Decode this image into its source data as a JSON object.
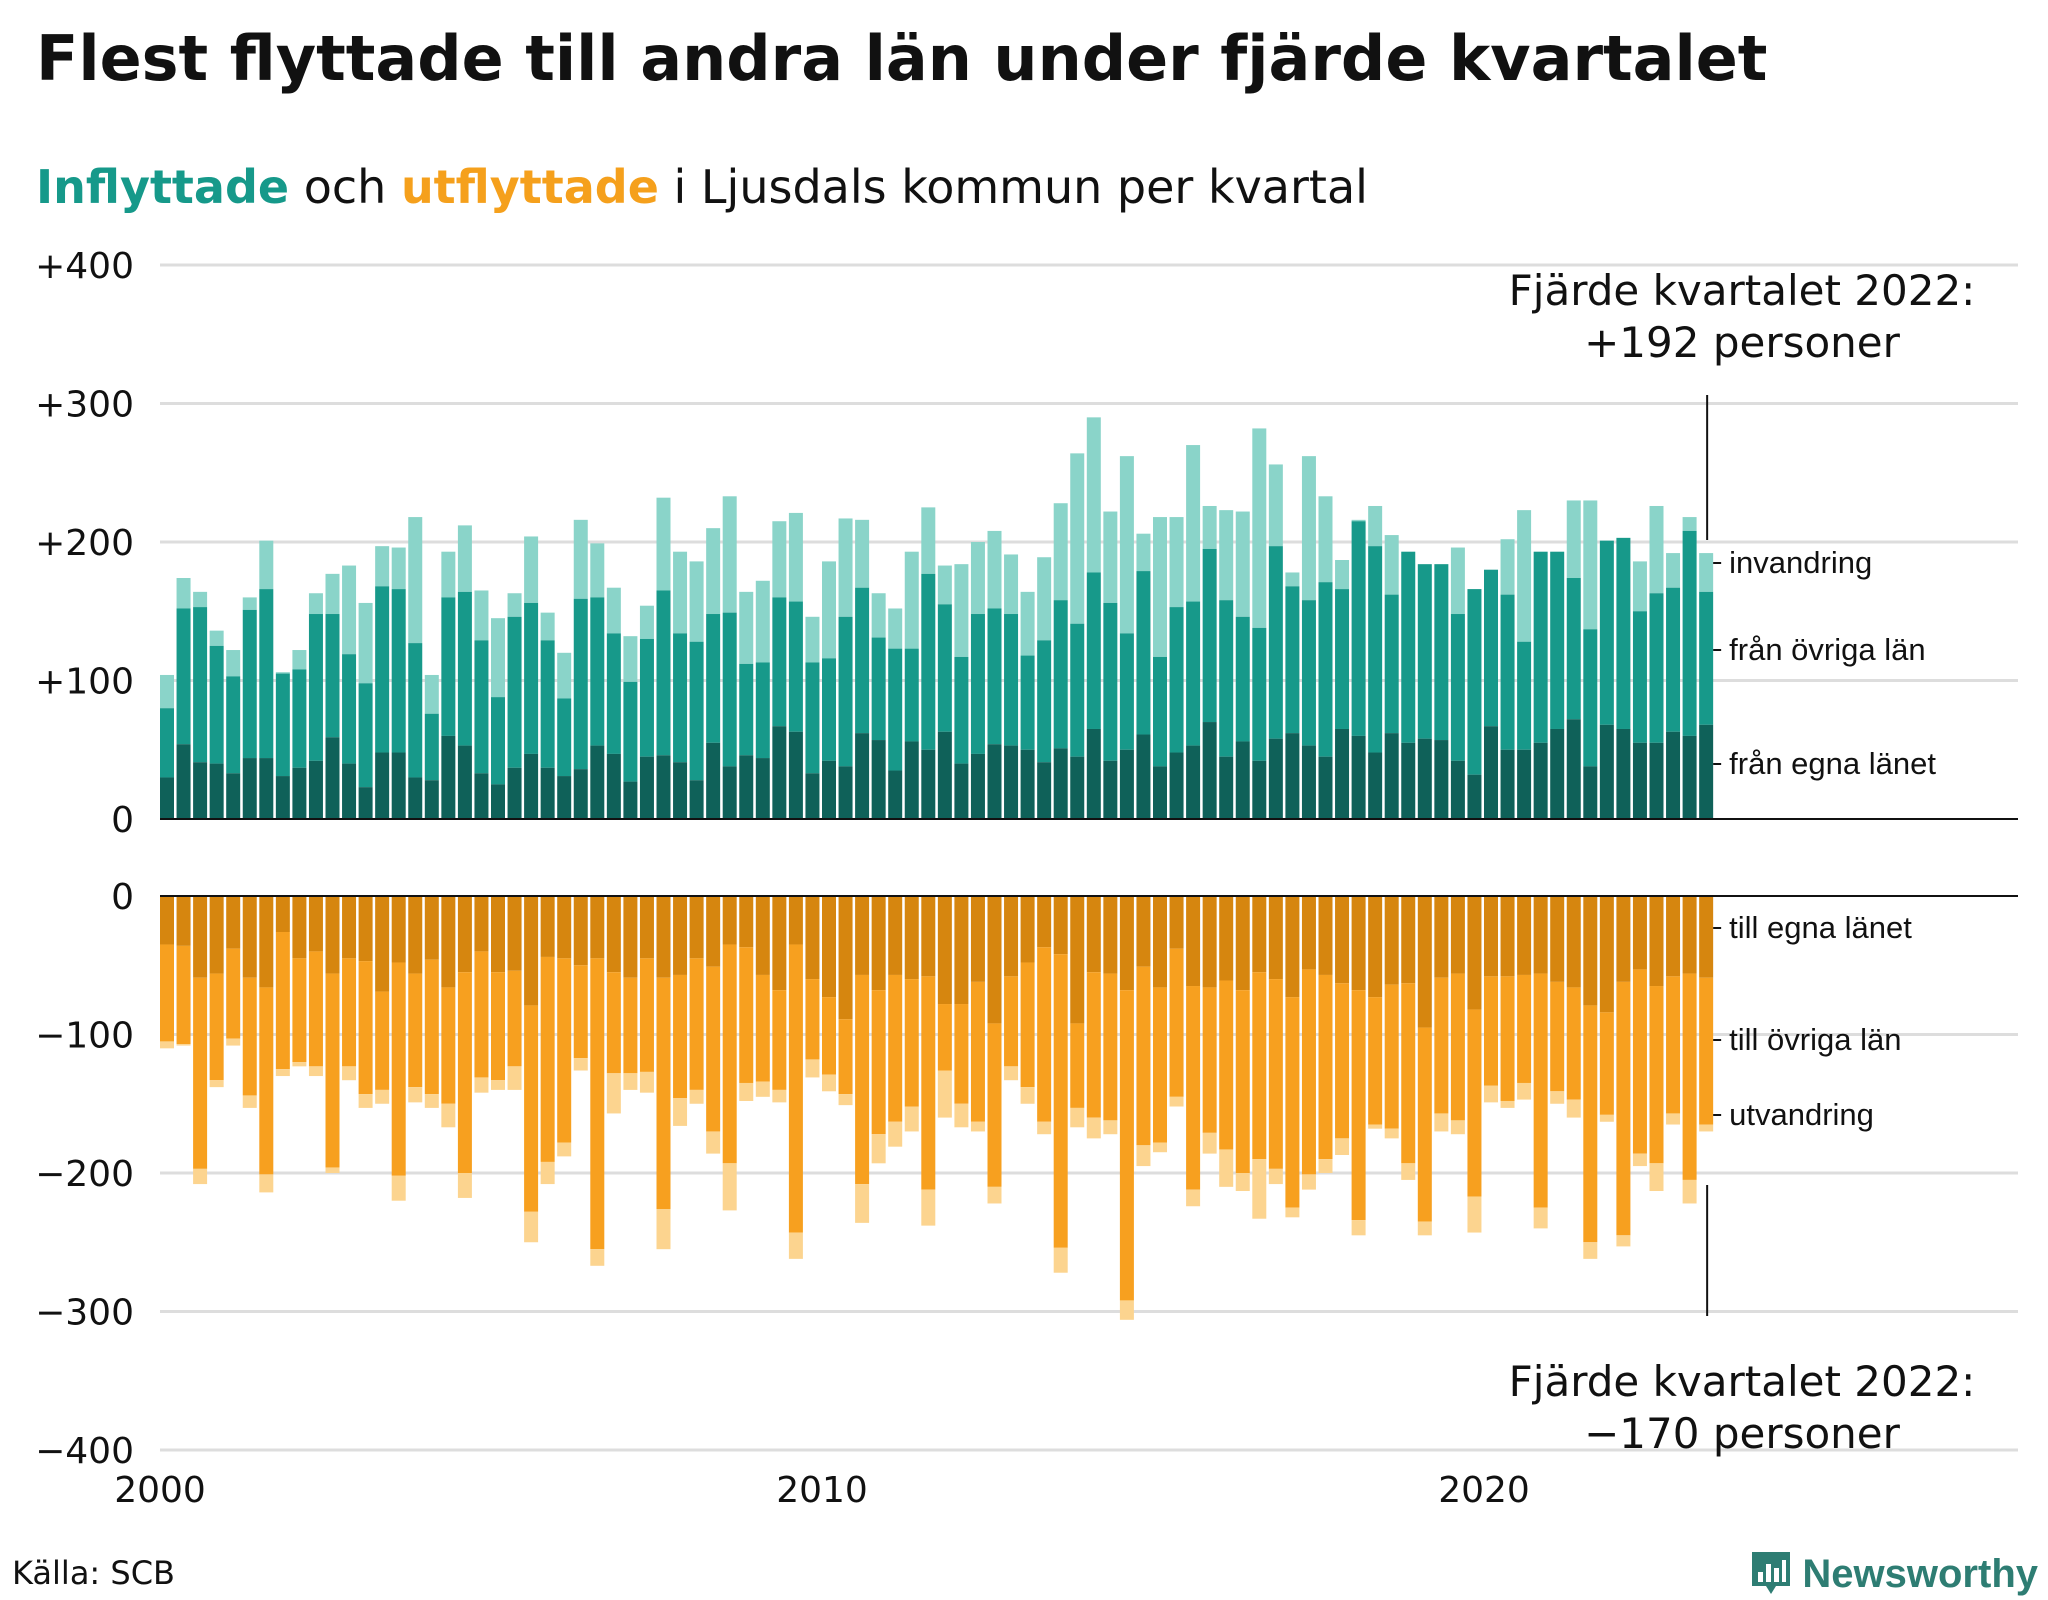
{
  "title": "Flest flyttade till andra län under fjärde kvartalet",
  "subtitle": {
    "inflow_word": "Inflyttade",
    "conj": "och",
    "outflow_word": "utflyttade",
    "rest": "i Ljusdals kommun per kvartal"
  },
  "source": "Källa: SCB",
  "brand": "Newsworthy",
  "colors": {
    "in_own": "#0f6159",
    "in_other": "#17998a",
    "in_immig": "#8ad4c9",
    "out_own": "#d6860f",
    "out_other": "#f7a01f",
    "out_emig": "#fcd48f",
    "grid": "#dddddd",
    "text": "#111111"
  },
  "chart_data": {
    "type": "bar",
    "stacked": true,
    "x_start": "2000 Q1",
    "x_ticks": [
      "2000",
      "2010",
      "2020"
    ],
    "y_ticks_top": [
      "+400",
      "+300",
      "+200",
      "+100",
      "0"
    ],
    "y_ticks_bottom": [
      "0",
      "−100",
      "−200",
      "−300",
      "−400"
    ],
    "ylim_top": [
      0,
      400
    ],
    "ylim_bottom": [
      -400,
      0
    ],
    "in_labels": [
      "invandring",
      "från övriga län",
      "från egna länet"
    ],
    "out_labels": [
      "till egna länet",
      "till övriga län",
      "utvandring"
    ],
    "annotation_top": [
      "Fjärde kvartalet 2022:",
      "+192 personer"
    ],
    "annotation_bottom": [
      "Fjärde kvartalet 2022:",
      "−170 personer"
    ],
    "inflow": {
      "own": [
        30,
        54,
        41,
        40,
        33,
        44,
        44,
        31,
        37,
        42,
        59,
        40,
        23,
        48,
        48,
        30,
        28,
        60,
        53,
        33,
        25,
        37,
        47,
        37,
        31,
        36,
        53,
        47,
        27,
        45,
        46,
        41,
        28,
        55,
        38,
        46,
        44,
        67,
        63,
        33,
        42,
        38,
        62,
        57,
        35,
        56,
        50,
        63,
        40,
        47,
        54,
        53,
        50,
        41,
        51,
        45,
        65,
        42,
        50,
        61,
        38,
        48,
        53,
        70,
        45,
        56,
        42,
        58,
        62,
        53,
        45,
        65,
        60,
        48,
        62,
        55,
        58,
        57,
        42,
        32,
        67,
        50,
        50,
        55,
        65,
        72,
        38,
        68,
        65,
        55,
        55,
        63,
        60,
        68
      ],
      "other": [
        80,
        152,
        153,
        125,
        103,
        151,
        166,
        105,
        108,
        148,
        148,
        119,
        98,
        168,
        166,
        127,
        76,
        160,
        164,
        129,
        88,
        146,
        156,
        129,
        87,
        159,
        160,
        134,
        99,
        130,
        165,
        134,
        128,
        148,
        149,
        112,
        113,
        160,
        157,
        113,
        116,
        146,
        167,
        131,
        123,
        123,
        177,
        155,
        117,
        148,
        152,
        148,
        118,
        129,
        158,
        141,
        178,
        156,
        134,
        179,
        117,
        153,
        157,
        195,
        158,
        146,
        138,
        197,
        168,
        158,
        171,
        166,
        215,
        197,
        162,
        193,
        184,
        184,
        148,
        166,
        180,
        162,
        128,
        193,
        193,
        174,
        137,
        201,
        203,
        150,
        163,
        167,
        208,
        164
      ],
      "total": [
        104,
        174,
        164,
        136,
        122,
        160,
        201,
        106,
        122,
        163,
        177,
        183,
        156,
        197,
        196,
        218,
        104,
        193,
        212,
        165,
        145,
        163,
        204,
        149,
        120,
        216,
        199,
        167,
        132,
        154,
        232,
        193,
        186,
        210,
        233,
        164,
        172,
        215,
        221,
        146,
        186,
        217,
        216,
        163,
        152,
        193,
        225,
        183,
        184,
        200,
        208,
        191,
        164,
        189,
        228,
        264,
        290,
        222,
        262,
        206,
        218,
        218,
        270,
        226,
        223,
        222,
        282,
        256,
        178,
        262,
        233,
        187,
        216,
        226,
        205,
        188,
        161,
        180,
        196,
        156,
        140,
        202,
        223,
        192,
        148,
        230,
        230,
        160,
        170,
        186,
        226,
        192,
        218,
        192
      ]
    },
    "outflow": {
      "own": [
        -35,
        -36,
        -59,
        -56,
        -38,
        -59,
        -66,
        -26,
        -45,
        -40,
        -56,
        -45,
        -47,
        -69,
        -48,
        -56,
        -46,
        -66,
        -55,
        -40,
        -55,
        -54,
        -79,
        -44,
        -45,
        -50,
        -45,
        -55,
        -59,
        -45,
        -59,
        -57,
        -45,
        -51,
        -35,
        -37,
        -57,
        -68,
        -35,
        -60,
        -73,
        -89,
        -57,
        -68,
        -57,
        -60,
        -58,
        -78,
        -78,
        -62,
        -92,
        -58,
        -48,
        -37,
        -42,
        -92,
        -55,
        -56,
        -68,
        -51,
        -66,
        -38,
        -65,
        -66,
        -61,
        -68,
        -55,
        -60,
        -73,
        -53,
        -57,
        -63,
        -68,
        -73,
        -64,
        -63,
        -95,
        -59,
        -56,
        -82,
        -58,
        -58,
        -57,
        -56,
        -62,
        -66,
        -79,
        -84,
        -62,
        -53,
        -65,
        -58,
        -56,
        -59
      ],
      "other": [
        -105,
        -107,
        -197,
        -133,
        -103,
        -144,
        -201,
        -125,
        -120,
        -123,
        -196,
        -123,
        -143,
        -140,
        -202,
        -138,
        -143,
        -150,
        -200,
        -131,
        -133,
        -123,
        -228,
        -192,
        -178,
        -117,
        -255,
        -128,
        -128,
        -127,
        -226,
        -146,
        -140,
        -170,
        -193,
        -135,
        -134,
        -140,
        -243,
        -118,
        -129,
        -143,
        -208,
        -172,
        -163,
        -152,
        -212,
        -126,
        -150,
        -163,
        -210,
        -123,
        -138,
        -163,
        -254,
        -153,
        -160,
        -162,
        -292,
        -180,
        -178,
        -145,
        -212,
        -171,
        -183,
        -200,
        -190,
        -197,
        -225,
        -201,
        -190,
        -175,
        -234,
        -165,
        -168,
        -193,
        -235,
        -157,
        -162,
        -217,
        -137,
        -148,
        -135,
        -225,
        -141,
        -147,
        -250,
        -158,
        -245,
        -186,
        -193,
        -157,
        -205,
        -165
      ],
      "total": [
        -110,
        -108,
        -208,
        -138,
        -108,
        -153,
        -214,
        -130,
        -123,
        -130,
        -200,
        -133,
        -153,
        -150,
        -220,
        -149,
        -153,
        -167,
        -218,
        -142,
        -140,
        -140,
        -250,
        -208,
        -188,
        -126,
        -267,
        -157,
        -140,
        -142,
        -255,
        -166,
        -150,
        -186,
        -227,
        -148,
        -145,
        -149,
        -262,
        -131,
        -141,
        -151,
        -236,
        -193,
        -181,
        -170,
        -238,
        -160,
        -167,
        -170,
        -222,
        -133,
        -150,
        -172,
        -272,
        -167,
        -175,
        -172,
        -306,
        -195,
        -185,
        -152,
        -224,
        -186,
        -210,
        -213,
        -233,
        -208,
        -232,
        -212,
        -200,
        -187,
        -245,
        -168,
        -175,
        -205,
        -245,
        -170,
        -172,
        -243,
        -149,
        -153,
        -147,
        -240,
        -150,
        -160,
        -262,
        -163,
        -253,
        -195,
        -213,
        -165,
        -222,
        -170
      ]
    }
  }
}
